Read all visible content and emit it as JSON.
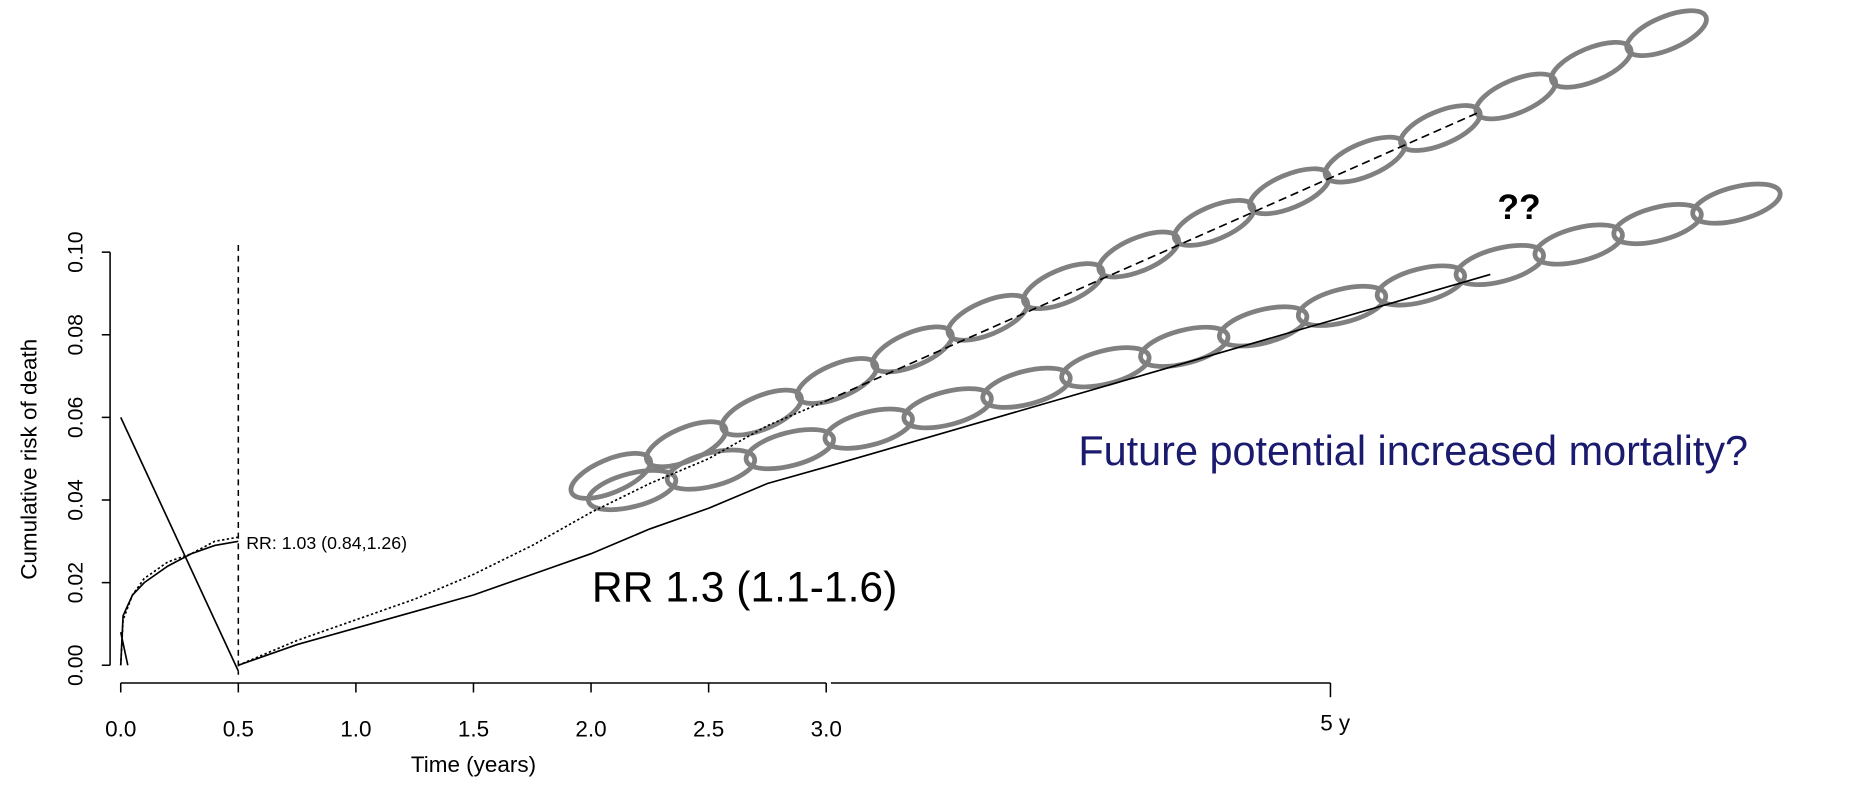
{
  "chart_data": {
    "type": "line",
    "y_label": "Cumulative risk of death",
    "x_label": "Time (years)",
    "xlim": [
      0,
      3
    ],
    "xticks": [
      {
        "value": 0,
        "label": "0.0"
      },
      {
        "value": 0.5,
        "label": "0.5"
      },
      {
        "value": 1,
        "label": "1.0"
      },
      {
        "value": 1.5,
        "label": "1.5"
      },
      {
        "value": 2,
        "label": "2.0"
      },
      {
        "value": 2.5,
        "label": "2.5"
      },
      {
        "value": 3,
        "label": "3.0"
      }
    ],
    "x_extension": {
      "lim": [
        3,
        5
      ],
      "ticks": [
        {
          "value": 5,
          "label": "5 y"
        }
      ]
    },
    "ylim": [
      0,
      0.1
    ],
    "yticks": [
      {
        "value": 0,
        "label": "0.00"
      },
      {
        "value": 0.02,
        "label": "0.02"
      },
      {
        "value": 0.04,
        "label": "0.04"
      },
      {
        "value": 0.06,
        "label": "0.06"
      },
      {
        "value": 0.08,
        "label": "0.08"
      },
      {
        "value": 0.1,
        "label": "0.10"
      }
    ],
    "landmark_x": 0.5,
    "series": [
      {
        "color": "#000000",
        "linestyle": "solid",
        "x": [
          0,
          0.01,
          0.05,
          0.1,
          0.2,
          0.3,
          0.4,
          0.5
        ],
        "values": [
          0,
          0.012,
          0.017,
          0.02,
          0.024,
          0.027,
          0.029,
          0.03
        ]
      },
      {
        "color": "#000000",
        "linestyle": "dotted",
        "x": [
          0,
          0.01,
          0.05,
          0.1,
          0.2,
          0.3,
          0.4,
          0.5
        ],
        "values": [
          0,
          0.011,
          0.017,
          0.021,
          0.025,
          0.027,
          0.03,
          0.031
        ]
      },
      {
        "color": "#000000",
        "linestyle": "dotted",
        "x": [
          0.5,
          0.75,
          1,
          1.25,
          1.5,
          1.75,
          2,
          2.25,
          2.5,
          2.75,
          3
        ],
        "values": [
          0,
          0.006,
          0.011,
          0.016,
          0.022,
          0.029,
          0.037,
          0.044,
          0.05,
          0.058,
          0.064
        ]
      },
      {
        "color": "#000000",
        "linestyle": "solid",
        "x": [
          0.5,
          0.75,
          1,
          1.25,
          1.5,
          1.75,
          2,
          2.25,
          2.5,
          2.75,
          3
        ],
        "values": [
          0,
          0.005,
          0.009,
          0.013,
          0.017,
          0.022,
          0.027,
          0.033,
          0.038,
          0.044,
          0.048
        ]
      },
      {
        "color": "#000000",
        "linestyle": "dashed",
        "x": [
          3,
          5.6
        ],
        "values": [
          0.064,
          0.134
        ]
      },
      {
        "color": "#000000",
        "linestyle": "solid",
        "x": [
          3,
          5.64
        ],
        "values": [
          0.048,
          0.0946
        ]
      },
      {
        "color": "#000000",
        "linestyle": "solid",
        "x": [
          0,
          0.5
        ],
        "values": [
          0.06,
          -0.0014
        ]
      },
      {
        "color": "#000000",
        "linestyle": "solid",
        "x": [
          0,
          0.03
        ],
        "values": [
          0.008,
          0
        ]
      }
    ],
    "annotations": {
      "landmark_rr": "RR: 1.03 (0.84,1.26)",
      "rr": "RR 1.3 (1.1-1.6)",
      "future": "Future potential increased mortality?",
      "question": "??"
    }
  }
}
